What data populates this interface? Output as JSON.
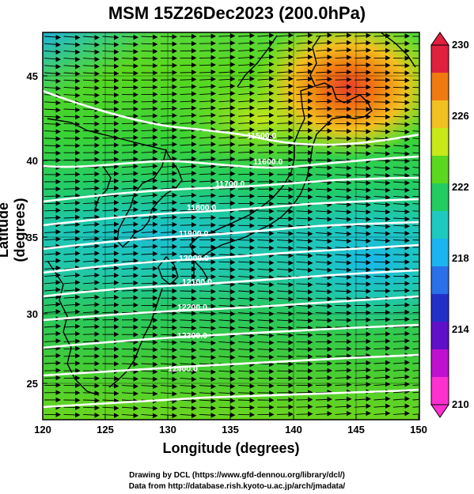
{
  "title": "MSM 15Z26Dec2023 (200.0hPa)",
  "axes": {
    "xlabel": "Longitude (degrees)",
    "ylabel": "Latitude  (degrees)",
    "xticks": [
      "120",
      "125",
      "130",
      "135",
      "140",
      "145",
      "150"
    ],
    "yticks": [
      "45",
      "40",
      "35",
      "30",
      "25"
    ]
  },
  "colorbar": {
    "labels": [
      "230",
      "226",
      "222",
      "218",
      "214",
      "210"
    ],
    "colors": [
      "#e0203c",
      "#f07a10",
      "#f2c020",
      "#c8e818",
      "#5ad81e",
      "#22cc60",
      "#1ecac0",
      "#1ab4f0",
      "#2a70e8",
      "#2230c8",
      "#6010c8",
      "#c010d0",
      "#ff30d0"
    ]
  },
  "contour_labels": [
    "11500.0",
    "11600.0",
    "11700.0",
    "11800.0",
    "11900.0",
    "12000.0",
    "12100.0",
    "12200.0",
    "12300.0",
    "12400.0"
  ],
  "footer": {
    "line1": "Drawing by DCL (https://www.gfd-dennou.org/library/dcl/)",
    "line2": "Data from http://database.rish.kyoto-u.ac.jp/arch/jmadata/"
  },
  "chart_data": {
    "type": "heatmap",
    "title": "MSM 15Z26Dec2023 (200.0hPa)",
    "xlabel": "Longitude (degrees)",
    "ylabel": "Latitude  (degrees)",
    "xlim": [
      120,
      150
    ],
    "ylim": [
      22.4,
      47.6
    ],
    "colorbar_range": [
      210,
      230
    ],
    "contour_levels": [
      11500,
      11600,
      11700,
      11800,
      11900,
      12000,
      12100,
      12200,
      12300,
      12400
    ],
    "vector_field": "westerly wind arrows"
  }
}
